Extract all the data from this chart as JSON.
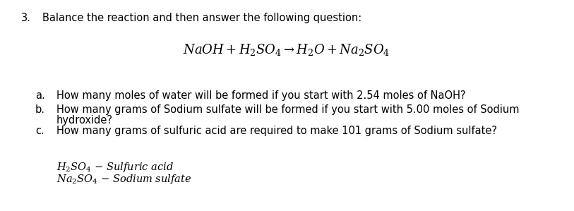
{
  "background_color": "#ffffff",
  "font_size_title": 10.5,
  "font_size_equation": 13,
  "font_size_body": 10.5,
  "font_size_footnote": 10.5,
  "title_number": "3.",
  "title_text": "Balance the reaction and then answer the following question:",
  "equation": "$NaOH + H_2SO_4 \\rightarrow H_2O + Na_2SO_4$",
  "q_a_label": "a.",
  "q_a_text": "How many moles of water will be formed if you start with 2.54 moles of NaOH?",
  "q_b_label": "b.",
  "q_b_line1": "How many grams of Sodium sulfate will be formed if you start with 5.00 moles of Sodium",
  "q_b_line2": "hydroxide?",
  "q_c_label": "c.",
  "q_c_text": "How many grams of sulfuric acid are required to make 101 grams of Sodium sulfate?",
  "fn1_math": "$\\mathit{H_2SO_4}$",
  "fn1_dash": " – ",
  "fn1_text": "Sulfuric acid",
  "fn2_math": "$\\mathit{Na_2SO_4}$",
  "fn2_dash": " – ",
  "fn2_text": "Sodium sulfate"
}
